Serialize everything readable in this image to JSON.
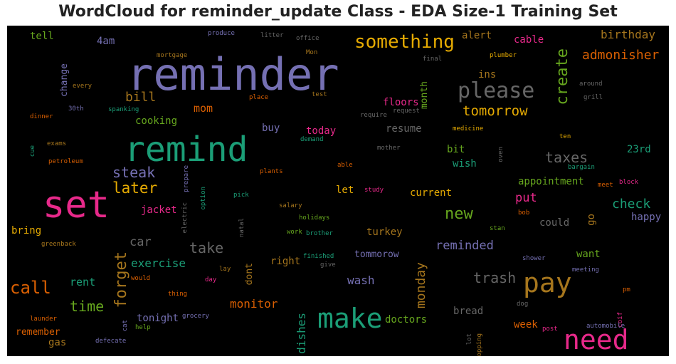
{
  "chart_data": {
    "type": "wordcloud",
    "title": "WordCloud for reminder_update Class - EDA Size-1 Training Set",
    "background": "#000000",
    "words": [
      {
        "text": "reminder",
        "color": "#7570b3"
      },
      {
        "text": "set",
        "color": "#e7298a"
      },
      {
        "text": "remind",
        "color": "#1b9e77"
      },
      {
        "text": "make",
        "color": "#1b9e77"
      },
      {
        "text": "pay",
        "color": "#a6761d"
      },
      {
        "text": "need",
        "color": "#e7298a"
      },
      {
        "text": "please",
        "color": "#666666"
      },
      {
        "text": "something",
        "color": "#e6ab02"
      },
      {
        "text": "call",
        "color": "#d95f02"
      },
      {
        "text": "forget",
        "color": "#a6761d"
      },
      {
        "text": "create",
        "color": "#66a61e"
      },
      {
        "text": "tomorrow",
        "color": "#e6ab02"
      },
      {
        "text": "later",
        "color": "#e6ab02"
      },
      {
        "text": "new",
        "color": "#66a61e"
      },
      {
        "text": "taxes",
        "color": "#666666"
      },
      {
        "text": "steak",
        "color": "#7570b3"
      },
      {
        "text": "time",
        "color": "#66a61e"
      },
      {
        "text": "take",
        "color": "#666666"
      },
      {
        "text": "trash",
        "color": "#666666"
      },
      {
        "text": "monday",
        "color": "#a6761d"
      },
      {
        "text": "admonisher",
        "color": "#d95f02"
      },
      {
        "text": "check",
        "color": "#1b9e77"
      },
      {
        "text": "bill",
        "color": "#a6761d"
      },
      {
        "text": "reminded",
        "color": "#7570b3"
      },
      {
        "text": "exercise",
        "color": "#1b9e77"
      },
      {
        "text": "car",
        "color": "#666666"
      },
      {
        "text": "dishes",
        "color": "#1b9e77"
      },
      {
        "text": "birthday",
        "color": "#a6761d"
      },
      {
        "text": "monitor",
        "color": "#d95f02"
      },
      {
        "text": "mom",
        "color": "#d95f02"
      },
      {
        "text": "put",
        "color": "#e7298a"
      },
      {
        "text": "rent",
        "color": "#1b9e77"
      },
      {
        "text": "wash",
        "color": "#7570b3"
      },
      {
        "text": "tell",
        "color": "#66a61e"
      },
      {
        "text": "change",
        "color": "#7570b3"
      },
      {
        "text": "4am",
        "color": "#7570b3"
      },
      {
        "text": "alert",
        "color": "#a6761d"
      },
      {
        "text": "cable",
        "color": "#e7298a"
      },
      {
        "text": "ins",
        "color": "#a6761d"
      },
      {
        "text": "floors",
        "color": "#e7298a"
      },
      {
        "text": "month",
        "color": "#66a61e"
      },
      {
        "text": "cooking",
        "color": "#66a61e"
      },
      {
        "text": "buy",
        "color": "#7570b3"
      },
      {
        "text": "today",
        "color": "#e7298a"
      },
      {
        "text": "resume",
        "color": "#666666"
      },
      {
        "text": "bit",
        "color": "#66a61e"
      },
      {
        "text": "wish",
        "color": "#1b9e77"
      },
      {
        "text": "23rd",
        "color": "#1b9e77"
      },
      {
        "text": "appointment",
        "color": "#66a61e"
      },
      {
        "text": "let",
        "color": "#e6ab02"
      },
      {
        "text": "current",
        "color": "#e6ab02"
      },
      {
        "text": "jacket",
        "color": "#e7298a"
      },
      {
        "text": "happy",
        "color": "#7570b3"
      },
      {
        "text": "bring",
        "color": "#e6ab02"
      },
      {
        "text": "turkey",
        "color": "#a6761d"
      },
      {
        "text": "could",
        "color": "#666666"
      },
      {
        "text": "go",
        "color": "#a6761d"
      },
      {
        "text": "tommorow",
        "color": "#7570b3"
      },
      {
        "text": "want",
        "color": "#66a61e"
      },
      {
        "text": "right",
        "color": "#a6761d"
      },
      {
        "text": "dont",
        "color": "#a6761d"
      },
      {
        "text": "tonight",
        "color": "#7570b3"
      },
      {
        "text": "bread",
        "color": "#666666"
      },
      {
        "text": "doctors",
        "color": "#66a61e"
      },
      {
        "text": "week",
        "color": "#d95f02"
      },
      {
        "text": "remember",
        "color": "#d95f02"
      },
      {
        "text": "gas",
        "color": "#a6761d"
      },
      {
        "text": "produce",
        "color": "#7570b3"
      },
      {
        "text": "litter",
        "color": "#666666"
      },
      {
        "text": "office",
        "color": "#666666"
      },
      {
        "text": "mortgage",
        "color": "#a6761d"
      },
      {
        "text": "Mon",
        "color": "#a6761d"
      },
      {
        "text": "final",
        "color": "#666666"
      },
      {
        "text": "plumber",
        "color": "#e6ab02"
      },
      {
        "text": "every",
        "color": "#a6761d"
      },
      {
        "text": "test",
        "color": "#a6761d"
      },
      {
        "text": "place",
        "color": "#d95f02"
      },
      {
        "text": "around",
        "color": "#666666"
      },
      {
        "text": "grill",
        "color": "#666666"
      },
      {
        "text": "30th",
        "color": "#7570b3"
      },
      {
        "text": "spanking",
        "color": "#1b9e77"
      },
      {
        "text": "require",
        "color": "#666666"
      },
      {
        "text": "request",
        "color": "#666666"
      },
      {
        "text": "dinner",
        "color": "#d95f02"
      },
      {
        "text": "medicine",
        "color": "#e6ab02"
      },
      {
        "text": "demand",
        "color": "#1b9e77"
      },
      {
        "text": "exams",
        "color": "#a6761d"
      },
      {
        "text": "cue",
        "color": "#1b9e77"
      },
      {
        "text": "ten",
        "color": "#e6ab02"
      },
      {
        "text": "mother",
        "color": "#666666"
      },
      {
        "text": "oven",
        "color": "#666666"
      },
      {
        "text": "petroleum",
        "color": "#d95f02"
      },
      {
        "text": "able",
        "color": "#d95f02"
      },
      {
        "text": "bargain",
        "color": "#1b9e77"
      },
      {
        "text": "plants",
        "color": "#d95f02"
      },
      {
        "text": "prepare",
        "color": "#7570b3"
      },
      {
        "text": "block",
        "color": "#e7298a"
      },
      {
        "text": "meet",
        "color": "#d95f02"
      },
      {
        "text": "pick",
        "color": "#1b9e77"
      },
      {
        "text": "study",
        "color": "#e7298a"
      },
      {
        "text": "option",
        "color": "#1b9e77"
      },
      {
        "text": "salary",
        "color": "#a6761d"
      },
      {
        "text": "holidays",
        "color": "#66a61e"
      },
      {
        "text": "electric",
        "color": "#666666"
      },
      {
        "text": "bob",
        "color": "#d95f02"
      },
      {
        "text": "stan",
        "color": "#66a61e"
      },
      {
        "text": "natal",
        "color": "#666666"
      },
      {
        "text": "work",
        "color": "#66a61e"
      },
      {
        "text": "brother",
        "color": "#1b9e77"
      },
      {
        "text": "greenback",
        "color": "#a6761d"
      },
      {
        "text": "finished",
        "color": "#1b9e77"
      },
      {
        "text": "give",
        "color": "#666666"
      },
      {
        "text": "shower",
        "color": "#7570b3"
      },
      {
        "text": "lay",
        "color": "#a6761d"
      },
      {
        "text": "would",
        "color": "#d95f02"
      },
      {
        "text": "day",
        "color": "#e7298a"
      },
      {
        "text": "meeting",
        "color": "#7570b3"
      },
      {
        "text": "thing",
        "color": "#d95f02"
      },
      {
        "text": "pm",
        "color": "#d95f02"
      },
      {
        "text": "dog",
        "color": "#666666"
      },
      {
        "text": "launder",
        "color": "#d95f02"
      },
      {
        "text": "cat",
        "color": "#7570b3"
      },
      {
        "text": "grocery",
        "color": "#7570b3"
      },
      {
        "text": "help",
        "color": "#66a61e"
      },
      {
        "text": "coif",
        "color": "#e7298a"
      },
      {
        "text": "automobile",
        "color": "#7570b3"
      },
      {
        "text": "post",
        "color": "#e7298a"
      },
      {
        "text": "defecate",
        "color": "#7570b3"
      },
      {
        "text": "lot",
        "color": "#666666"
      },
      {
        "text": "shopping",
        "color": "#a6761d"
      }
    ]
  }
}
